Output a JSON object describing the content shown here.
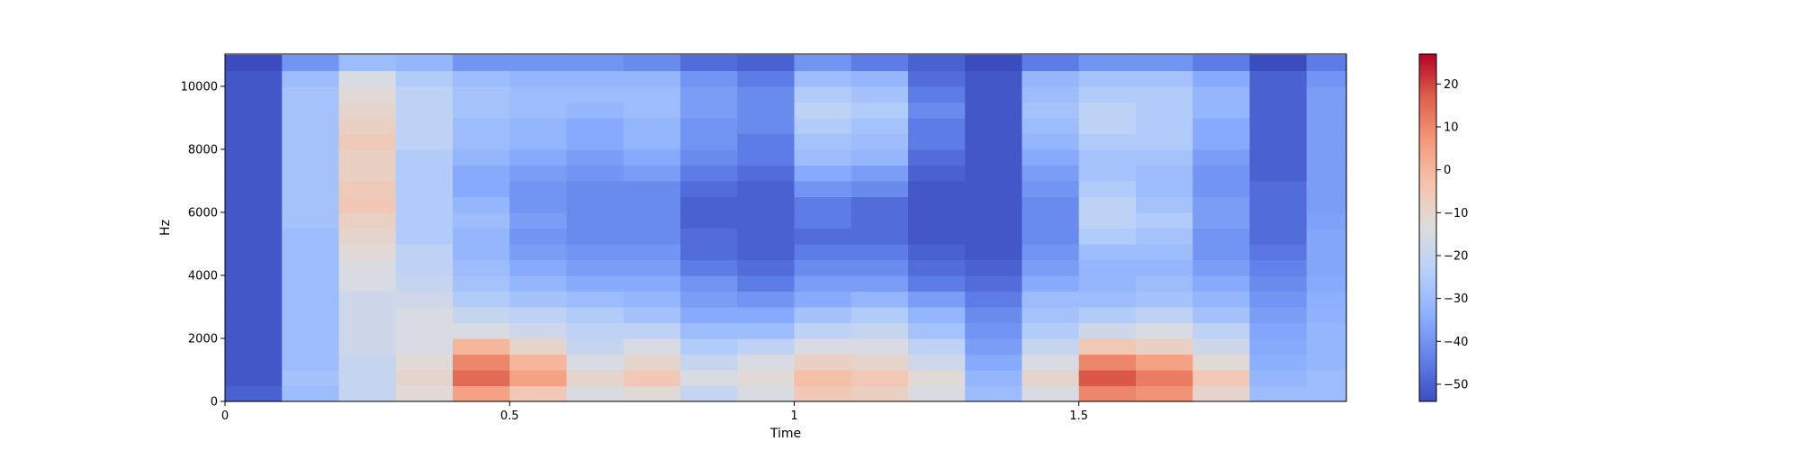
{
  "chart_data": {
    "type": "heatmap",
    "title": "",
    "xlabel": "Time",
    "ylabel": "Hz",
    "xlim": [
      0,
      1.97
    ],
    "ylim": [
      0,
      11025
    ],
    "xticks": [
      0,
      0.5,
      1,
      1.5
    ],
    "xtick_labels": [
      "0",
      "0.5",
      "1",
      "1.5"
    ],
    "yticks": [
      0,
      2000,
      4000,
      6000,
      8000,
      10000
    ],
    "ytick_labels": [
      "0",
      "2000",
      "4000",
      "6000",
      "8000",
      "10000"
    ],
    "colormap": "coolwarm",
    "colorbar": {
      "range": [
        -54,
        27
      ],
      "ticks": [
        -50,
        -40,
        -30,
        -20,
        -10,
        0,
        10,
        20
      ],
      "tick_labels": [
        "−50",
        "−40",
        "−30",
        "−20",
        "−10",
        "0",
        "10",
        "20"
      ],
      "placement": "right"
    },
    "time_bins": [
      0.05,
      0.15,
      0.25,
      0.35,
      0.45,
      0.55,
      0.65,
      0.75,
      0.85,
      0.95,
      1.05,
      1.15,
      1.25,
      1.35,
      1.45,
      1.55,
      1.65,
      1.75,
      1.85,
      1.95
    ],
    "freq_bins": [
      250,
      750,
      1250,
      1750,
      2250,
      2750,
      3250,
      3750,
      4250,
      4750,
      5250,
      5750,
      6250,
      6750,
      7250,
      7750,
      8250,
      8750,
      9250,
      9750,
      10250,
      10750
    ],
    "values": [
      [
        -50,
        -30,
        -20,
        -12,
        5,
        -5,
        -15,
        -12,
        -20,
        -15,
        -5,
        -8,
        -15,
        -30,
        -15,
        10,
        8,
        -10,
        -30,
        -30
      ],
      [
        -52,
        -28,
        -20,
        -10,
        15,
        5,
        -10,
        -5,
        -15,
        -12,
        -2,
        -5,
        -12,
        -32,
        -10,
        18,
        12,
        -5,
        -32,
        -30
      ],
      [
        -52,
        -30,
        -20,
        -12,
        10,
        0,
        -15,
        -10,
        -20,
        -15,
        -8,
        -10,
        -18,
        -35,
        -15,
        10,
        5,
        -12,
        -34,
        -32
      ],
      [
        -52,
        -30,
        -18,
        -15,
        0,
        -10,
        -20,
        -15,
        -25,
        -22,
        -15,
        -15,
        -22,
        -38,
        -20,
        -5,
        -8,
        -18,
        -35,
        -32
      ],
      [
        -52,
        -30,
        -18,
        -15,
        -15,
        -18,
        -22,
        -22,
        -30,
        -30,
        -22,
        -20,
        -28,
        -40,
        -25,
        -18,
        -15,
        -22,
        -36,
        -32
      ],
      [
        -52,
        -30,
        -18,
        -15,
        -20,
        -22,
        -25,
        -28,
        -35,
        -35,
        -28,
        -25,
        -32,
        -42,
        -28,
        -25,
        -22,
        -28,
        -38,
        -33
      ],
      [
        -52,
        -30,
        -18,
        -18,
        -25,
        -28,
        -30,
        -32,
        -38,
        -40,
        -35,
        -32,
        -38,
        -45,
        -30,
        -30,
        -28,
        -32,
        -40,
        -34
      ],
      [
        -52,
        -30,
        -15,
        -20,
        -28,
        -32,
        -35,
        -35,
        -40,
        -45,
        -38,
        -38,
        -45,
        -48,
        -35,
        -32,
        -30,
        -35,
        -42,
        -35
      ],
      [
        -52,
        -30,
        -15,
        -22,
        -30,
        -35,
        -38,
        -38,
        -45,
        -48,
        -42,
        -42,
        -48,
        -50,
        -38,
        -32,
        -32,
        -38,
        -44,
        -36
      ],
      [
        -52,
        -30,
        -12,
        -22,
        -32,
        -38,
        -40,
        -40,
        -48,
        -50,
        -45,
        -45,
        -50,
        -52,
        -40,
        -30,
        -30,
        -40,
        -46,
        -36
      ],
      [
        -52,
        -30,
        -10,
        -25,
        -32,
        -40,
        -42,
        -42,
        -48,
        -50,
        -48,
        -48,
        -52,
        -52,
        -42,
        -25,
        -28,
        -40,
        -48,
        -36
      ],
      [
        -52,
        -28,
        -8,
        -25,
        -30,
        -38,
        -42,
        -42,
        -50,
        -50,
        -45,
        -48,
        -52,
        -52,
        -42,
        -22,
        -25,
        -38,
        -48,
        -37
      ],
      [
        -52,
        -28,
        -5,
        -25,
        -32,
        -40,
        -42,
        -42,
        -50,
        -50,
        -45,
        -48,
        -52,
        -52,
        -42,
        -22,
        -28,
        -38,
        -48,
        -38
      ],
      [
        -52,
        -28,
        -6,
        -25,
        -35,
        -40,
        -42,
        -42,
        -48,
        -50,
        -40,
        -42,
        -52,
        -52,
        -40,
        -25,
        -30,
        -40,
        -48,
        -38
      ],
      [
        -52,
        -28,
        -8,
        -25,
        -35,
        -38,
        -40,
        -38,
        -45,
        -48,
        -35,
        -38,
        -50,
        -52,
        -38,
        -28,
        -30,
        -40,
        -50,
        -38
      ],
      [
        -52,
        -28,
        -8,
        -25,
        -32,
        -35,
        -38,
        -35,
        -42,
        -45,
        -30,
        -32,
        -48,
        -52,
        -35,
        -28,
        -28,
        -38,
        -50,
        -38
      ],
      [
        -52,
        -28,
        -6,
        -22,
        -30,
        -32,
        -35,
        -32,
        -40,
        -45,
        -28,
        -30,
        -45,
        -52,
        -32,
        -25,
        -25,
        -35,
        -50,
        -38
      ],
      [
        -52,
        -28,
        -8,
        -22,
        -30,
        -32,
        -35,
        -32,
        -40,
        -42,
        -25,
        -28,
        -45,
        -52,
        -30,
        -22,
        -25,
        -35,
        -50,
        -38
      ],
      [
        -52,
        -28,
        -10,
        -22,
        -28,
        -30,
        -32,
        -30,
        -38,
        -42,
        -22,
        -25,
        -42,
        -52,
        -28,
        -22,
        -25,
        -32,
        -50,
        -38
      ],
      [
        -52,
        -28,
        -12,
        -22,
        -28,
        -30,
        -30,
        -30,
        -38,
        -42,
        -25,
        -28,
        -45,
        -52,
        -30,
        -25,
        -25,
        -32,
        -50,
        -38
      ],
      [
        -52,
        -30,
        -15,
        -25,
        -30,
        -32,
        -32,
        -32,
        -40,
        -45,
        -30,
        -32,
        -48,
        -52,
        -32,
        -28,
        -28,
        -35,
        -50,
        -40
      ],
      [
        -54,
        -40,
        -30,
        -32,
        -40,
        -40,
        -40,
        -42,
        -48,
        -50,
        -40,
        -45,
        -50,
        -54,
        -45,
        -40,
        -40,
        -45,
        -54,
        -45
      ]
    ]
  }
}
